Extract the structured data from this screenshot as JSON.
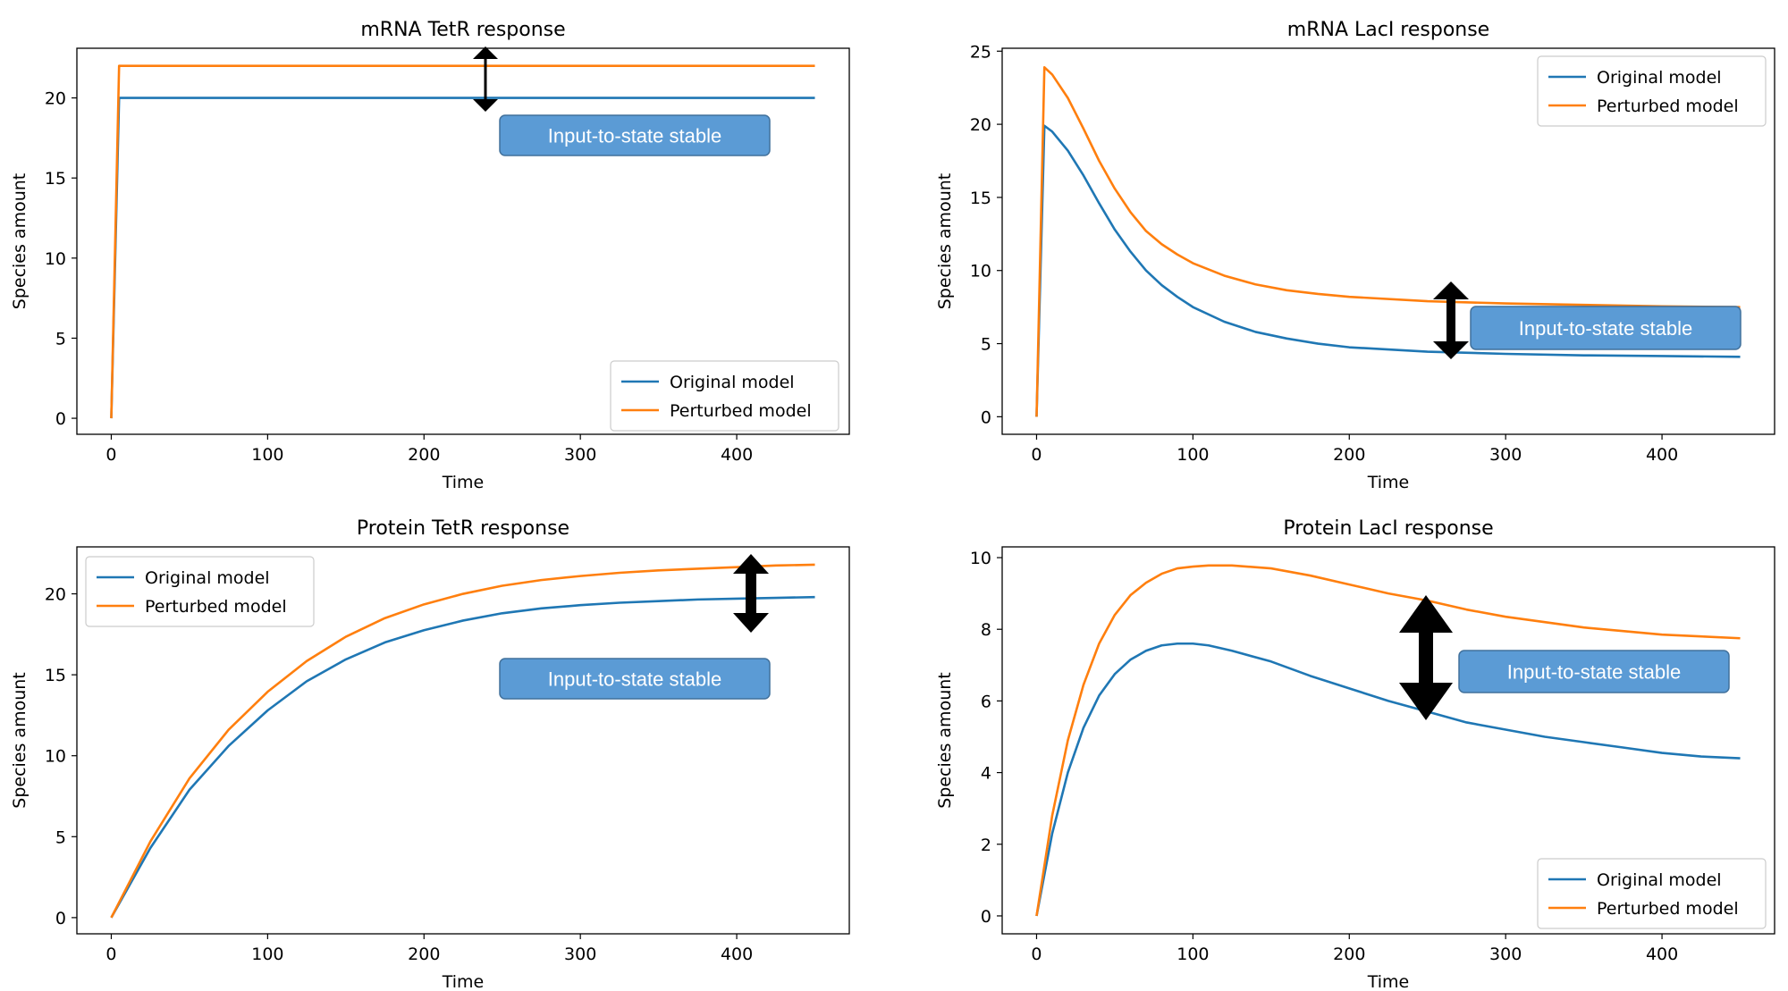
{
  "colors": {
    "original": "#1f77b4",
    "perturbed": "#ff7f0e",
    "callout_fill": "#5b9bd5",
    "callout_border": "#41719c",
    "arrow": "#000000"
  },
  "chart_data": [
    {
      "type": "line",
      "title": "mRNA TetR response",
      "xlabel": "Time",
      "ylabel": "Species amount",
      "xlim": [
        -22,
        472
      ],
      "ylim": [
        -1.0,
        23.1
      ],
      "xticks": [
        0,
        100,
        200,
        300,
        400
      ],
      "yticks": [
        0,
        5,
        10,
        15,
        20
      ],
      "grid": false,
      "legend_position": "lower right",
      "annotation": "Input-to-state stable",
      "series": [
        {
          "name": "Original model",
          "x": [
            0,
            5,
            100,
            200,
            300,
            400,
            450
          ],
          "y": [
            0,
            20,
            20,
            20,
            20,
            20,
            20
          ]
        },
        {
          "name": "Perturbed model",
          "x": [
            0,
            5,
            100,
            200,
            300,
            400,
            450
          ],
          "y": [
            0,
            22,
            22,
            22,
            22,
            22,
            22
          ]
        }
      ]
    },
    {
      "type": "line",
      "title": "mRNA LacI response",
      "xlabel": "Time",
      "ylabel": "Species amount",
      "xlim": [
        -22,
        472
      ],
      "ylim": [
        -1.2,
        25.2
      ],
      "xticks": [
        0,
        100,
        200,
        300,
        400
      ],
      "yticks": [
        0,
        5,
        10,
        15,
        20,
        25
      ],
      "grid": false,
      "legend_position": "upper right",
      "annotation": "Input-to-state stable",
      "series": [
        {
          "name": "Original model",
          "x": [
            0,
            5,
            10,
            20,
            30,
            40,
            50,
            60,
            70,
            80,
            90,
            100,
            120,
            140,
            160,
            180,
            200,
            250,
            300,
            350,
            400,
            450
          ],
          "y": [
            0,
            19.9,
            19.5,
            18.2,
            16.5,
            14.6,
            12.8,
            11.3,
            10.0,
            9.0,
            8.2,
            7.5,
            6.5,
            5.8,
            5.35,
            5.0,
            4.75,
            4.45,
            4.3,
            4.2,
            4.15,
            4.1
          ]
        },
        {
          "name": "Perturbed model",
          "x": [
            0,
            5,
            10,
            20,
            30,
            40,
            50,
            60,
            70,
            80,
            90,
            100,
            120,
            140,
            160,
            180,
            200,
            250,
            300,
            350,
            400,
            450
          ],
          "y": [
            0,
            23.9,
            23.4,
            21.8,
            19.7,
            17.5,
            15.6,
            14.0,
            12.7,
            11.8,
            11.1,
            10.5,
            9.65,
            9.05,
            8.65,
            8.4,
            8.2,
            7.9,
            7.75,
            7.65,
            7.55,
            7.5
          ]
        }
      ]
    },
    {
      "type": "line",
      "title": "Protein TetR response",
      "xlabel": "Time",
      "ylabel": "Species amount",
      "xlim": [
        -22,
        472
      ],
      "ylim": [
        -1.0,
        22.9
      ],
      "xticks": [
        0,
        100,
        200,
        300,
        400
      ],
      "yticks": [
        0,
        5,
        10,
        15,
        20
      ],
      "grid": false,
      "legend_position": "upper left",
      "annotation": "Input-to-state stable",
      "series": [
        {
          "name": "Original model",
          "x": [
            0,
            25,
            50,
            75,
            100,
            125,
            150,
            175,
            200,
            225,
            250,
            275,
            300,
            325,
            350,
            375,
            400,
            425,
            450
          ],
          "y": [
            0,
            4.3,
            7.9,
            10.6,
            12.8,
            14.6,
            15.95,
            17.0,
            17.75,
            18.35,
            18.8,
            19.1,
            19.3,
            19.45,
            19.55,
            19.65,
            19.7,
            19.75,
            19.8
          ]
        },
        {
          "name": "Perturbed model",
          "x": [
            0,
            25,
            50,
            75,
            100,
            125,
            150,
            175,
            200,
            225,
            250,
            275,
            300,
            325,
            350,
            375,
            400,
            425,
            450
          ],
          "y": [
            0,
            4.7,
            8.6,
            11.6,
            13.95,
            15.85,
            17.35,
            18.5,
            19.35,
            20.0,
            20.5,
            20.85,
            21.1,
            21.3,
            21.45,
            21.55,
            21.65,
            21.75,
            21.8
          ]
        }
      ]
    },
    {
      "type": "line",
      "title": "Protein LacI response",
      "xlabel": "Time",
      "ylabel": "Species amount",
      "xlim": [
        -22,
        472
      ],
      "ylim": [
        -0.5,
        10.3
      ],
      "xticks": [
        0,
        100,
        200,
        300,
        400
      ],
      "yticks": [
        0,
        2,
        4,
        6,
        8,
        10
      ],
      "grid": false,
      "legend_position": "lower right",
      "annotation": "Input-to-state stable",
      "series": [
        {
          "name": "Original model",
          "x": [
            0,
            10,
            20,
            30,
            40,
            50,
            60,
            70,
            80,
            90,
            100,
            110,
            125,
            150,
            175,
            200,
            225,
            250,
            275,
            300,
            325,
            350,
            375,
            400,
            425,
            450
          ],
          "y": [
            0,
            2.3,
            4.0,
            5.25,
            6.15,
            6.75,
            7.15,
            7.4,
            7.55,
            7.6,
            7.6,
            7.55,
            7.4,
            7.1,
            6.7,
            6.35,
            6.0,
            5.7,
            5.4,
            5.2,
            5.0,
            4.85,
            4.7,
            4.55,
            4.45,
            4.4
          ]
        },
        {
          "name": "Perturbed model",
          "x": [
            0,
            10,
            20,
            30,
            40,
            50,
            60,
            70,
            80,
            90,
            100,
            110,
            125,
            150,
            175,
            200,
            225,
            250,
            275,
            300,
            325,
            350,
            375,
            400,
            425,
            450
          ],
          "y": [
            0,
            2.8,
            4.9,
            6.45,
            7.6,
            8.4,
            8.95,
            9.3,
            9.55,
            9.7,
            9.75,
            9.78,
            9.78,
            9.7,
            9.5,
            9.25,
            9.0,
            8.8,
            8.55,
            8.35,
            8.2,
            8.05,
            7.95,
            7.85,
            7.8,
            7.75
          ]
        }
      ]
    }
  ]
}
